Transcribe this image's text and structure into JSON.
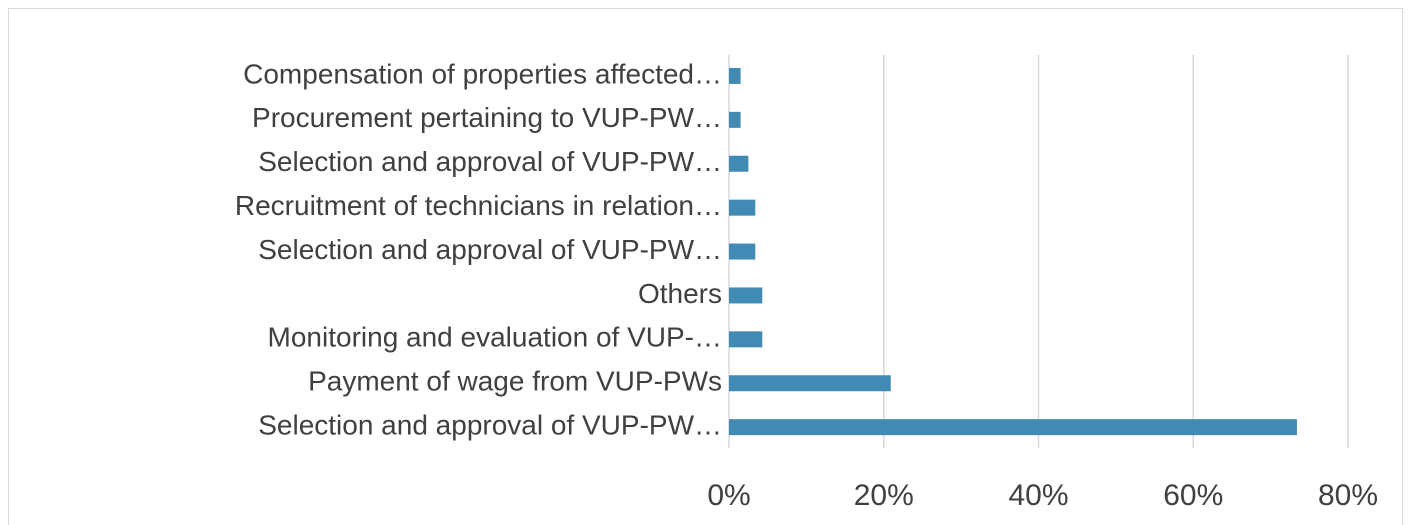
{
  "chart_data": {
    "type": "bar",
    "orientation": "horizontal",
    "categories": [
      "Compensation of properties affected…",
      "Procurement pertaining to VUP-PW…",
      "Selection and approval of VUP-PW…",
      "Recruitment of technicians in relation…",
      "Selection and approval of VUP-PW…",
      "Others",
      "Monitoring and evaluation of VUP-…",
      "Payment of wage from VUP-PWs",
      "Selection and approval of VUP-PW…"
    ],
    "values": [
      1.5,
      1.5,
      2.5,
      3.4,
      3.4,
      4.3,
      4.3,
      20.9,
      73.4
    ],
    "color": "#418ab3",
    "xlim": [
      0,
      80
    ],
    "xticks": [
      {
        "value": 0,
        "label": "0%"
      },
      {
        "value": 20,
        "label": "20%"
      },
      {
        "value": 40,
        "label": "40%"
      },
      {
        "value": 60,
        "label": "60%"
      },
      {
        "value": 80,
        "label": "80%"
      }
    ],
    "grid": true
  }
}
